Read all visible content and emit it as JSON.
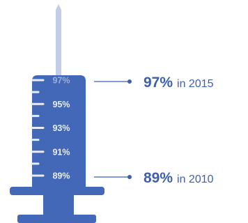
{
  "colors": {
    "syringe_body": "#4468b8",
    "needle": "#c2cde9",
    "fill_light": "#c2cde9",
    "tick_text": "#e8edf7",
    "callout_text": "#3d5fae",
    "callout_line": "#3d5fae"
  },
  "chart_data": {
    "type": "pictorial-gauge",
    "unit": "%",
    "scale_ticks": [
      {
        "value": 97,
        "label": "97%"
      },
      {
        "value": 95,
        "label": "95%"
      },
      {
        "value": 93,
        "label": "93%"
      },
      {
        "value": 91,
        "label": "91%"
      },
      {
        "value": 89,
        "label": "89%"
      }
    ],
    "scale_range": [
      89,
      97
    ],
    "fill_level": 97,
    "callouts": [
      {
        "value": 97,
        "value_label": "97%",
        "suffix": "in 2015"
      },
      {
        "value": 89,
        "value_label": "89%",
        "suffix": "in 2010"
      }
    ]
  }
}
